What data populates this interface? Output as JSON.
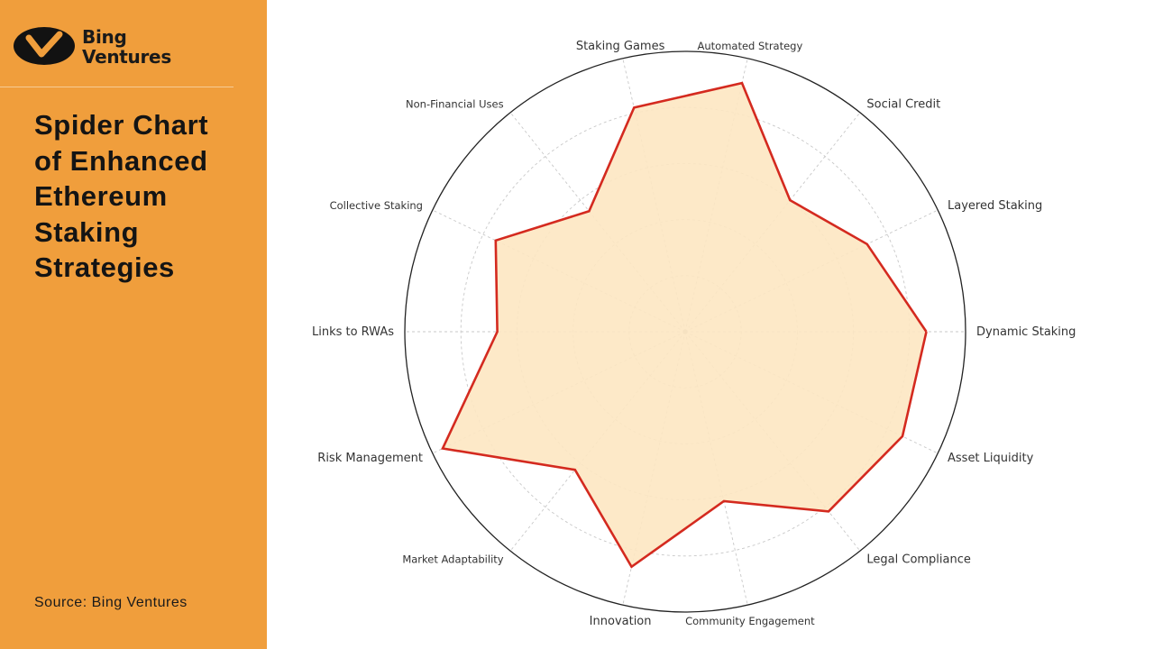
{
  "logo": {
    "line1": "Bing",
    "line2": "Ventures"
  },
  "title": "Spider Chart of Enhanced Ethereum Staking Strategies",
  "source": "Source: Bing Ventures",
  "colors": {
    "sidebar": "#f09e3c",
    "series_line": "#d42a1f",
    "series_fill": "#fde7c2",
    "outer_ring": "#222222",
    "grid": "#c8c8c8"
  },
  "chart_data": {
    "type": "radar",
    "categories": [
      "Dynamic Staking",
      "Layered Staking",
      "Social Credit",
      "Automated Strategy",
      "Staking Games",
      "Non-Financial Uses",
      "Collective Staking",
      "Links to RWAs",
      "Risk Management",
      "Market Adaptability",
      "Innovation",
      "Community Engagement",
      "Legal Compliance",
      "Asset Liquidity"
    ],
    "values": [
      8.6,
      7.2,
      6.0,
      9.1,
      8.2,
      5.5,
      7.5,
      6.7,
      9.6,
      6.3,
      8.6,
      6.2,
      8.2,
      8.6
    ],
    "rlim": [
      0,
      10
    ],
    "grid": true,
    "legend": false
  }
}
